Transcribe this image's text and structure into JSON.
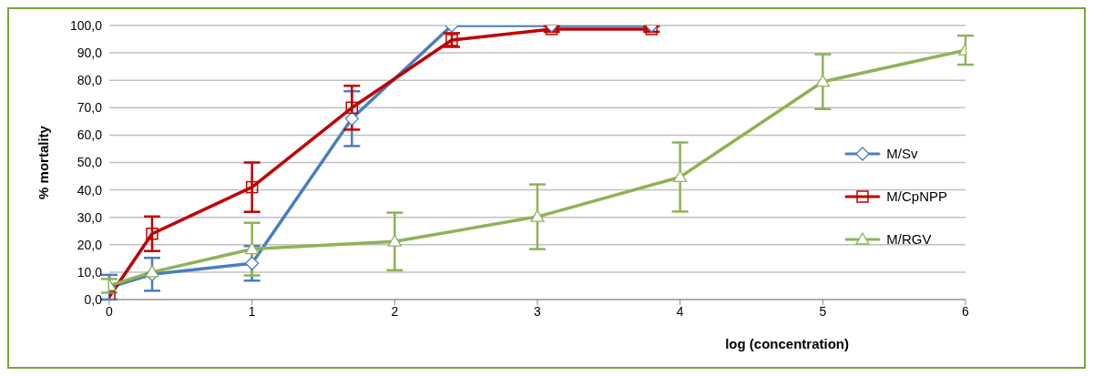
{
  "chart_data": {
    "type": "line",
    "xlabel": "log (concentration)",
    "ylabel": "% mortality",
    "xlim": [
      0,
      6
    ],
    "xticks": [
      0,
      1,
      2,
      3,
      4,
      5,
      6
    ],
    "ylim": [
      0,
      100
    ],
    "yticks": [
      {
        "value": 0,
        "label": "0,0"
      },
      {
        "value": 10,
        "label": "10,0"
      },
      {
        "value": 20,
        "label": "20,0"
      },
      {
        "value": 30,
        "label": "30,0"
      },
      {
        "value": 40,
        "label": "40,0"
      },
      {
        "value": 50,
        "label": "50,0"
      },
      {
        "value": 60,
        "label": "60,0"
      },
      {
        "value": 70,
        "label": "70,0"
      },
      {
        "value": 80,
        "label": "80,0"
      },
      {
        "value": 90,
        "label": "90,0"
      },
      {
        "value": 100,
        "label": "100,0"
      }
    ],
    "grid": "y",
    "legend": "right",
    "series": [
      {
        "name": "M/Sv",
        "color": "#4a7ebb",
        "marker": "diamond",
        "x": [
          0,
          0.3,
          1,
          1.7,
          2.4,
          3.1,
          3.8
        ],
        "values": [
          4.5,
          9.2,
          13.2,
          66,
          100,
          100,
          100
        ],
        "errors": [
          4.5,
          6,
          6.3,
          10,
          null,
          null,
          null
        ]
      },
      {
        "name": "M/CpNPP",
        "color": "#c00000",
        "marker": "square",
        "x": [
          0,
          0.3,
          1,
          1.7,
          2.4,
          3.1,
          3.8
        ],
        "values": [
          1,
          24,
          41,
          70,
          94.7,
          98.7,
          98.7
        ],
        "errors": [
          null,
          6.3,
          9,
          8,
          2.5,
          1,
          1
        ]
      },
      {
        "name": "M/RGV",
        "color": "#8eb356",
        "marker": "triangle",
        "x": [
          0,
          0.3,
          1,
          2,
          3,
          4,
          5,
          6
        ],
        "values": [
          5,
          10,
          18.4,
          21.2,
          30.2,
          44.7,
          79.5,
          91
        ],
        "errors": [
          2.5,
          null,
          9.6,
          10.5,
          11.8,
          12.6,
          10,
          5.3
        ]
      }
    ]
  }
}
